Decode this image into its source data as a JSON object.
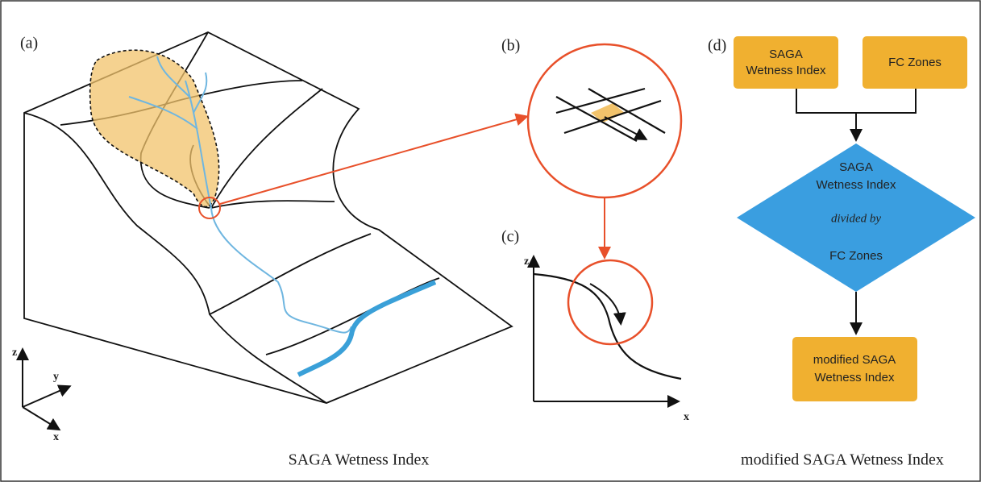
{
  "panels": {
    "a": {
      "label": "(a)",
      "axes": {
        "z": "z",
        "y": "y",
        "x": "x"
      },
      "caption": "SAGA Wetness Index"
    },
    "b": {
      "label": "(b)"
    },
    "c": {
      "label": "(c)",
      "axes": {
        "z": "z",
        "x": "x"
      }
    },
    "d": {
      "label": "(d)",
      "caption": "modified SAGA Wetness Index",
      "nodes": [
        {
          "lines": [
            "SAGA",
            "Wetness Index"
          ]
        },
        {
          "lines": [
            "FC Zones"
          ]
        },
        {
          "lines": [
            "SAGA",
            "Wetness Index",
            "divided by",
            "FC Zones"
          ]
        },
        {
          "lines": [
            "modified SAGA",
            "Wetness Index"
          ]
        }
      ]
    }
  }
}
